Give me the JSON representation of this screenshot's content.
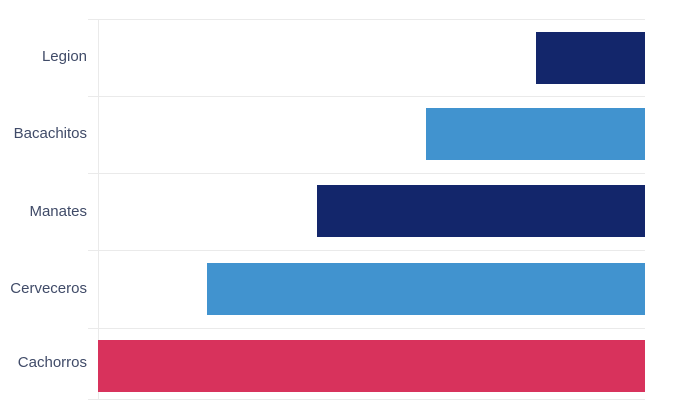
{
  "chart_data": {
    "type": "bar",
    "orientation": "horizontal",
    "bar_anchor": "right",
    "categories": [
      "Legion",
      "Bacachitos",
      "Manates",
      "Cerveceros",
      "Cachorros"
    ],
    "values": [
      1,
      2,
      3,
      4,
      5
    ],
    "bar_colors": [
      "#13266b",
      "#4193cf",
      "#13266b",
      "#4193cf",
      "#d8325c"
    ],
    "title": "",
    "xlabel": "",
    "ylabel": "",
    "xlim": [
      0,
      5
    ],
    "grid": "row-separators",
    "legend": "none"
  },
  "style": {
    "label_color": "#404b68",
    "gridline_color": "#eaeaea",
    "background": "#ffffff"
  }
}
